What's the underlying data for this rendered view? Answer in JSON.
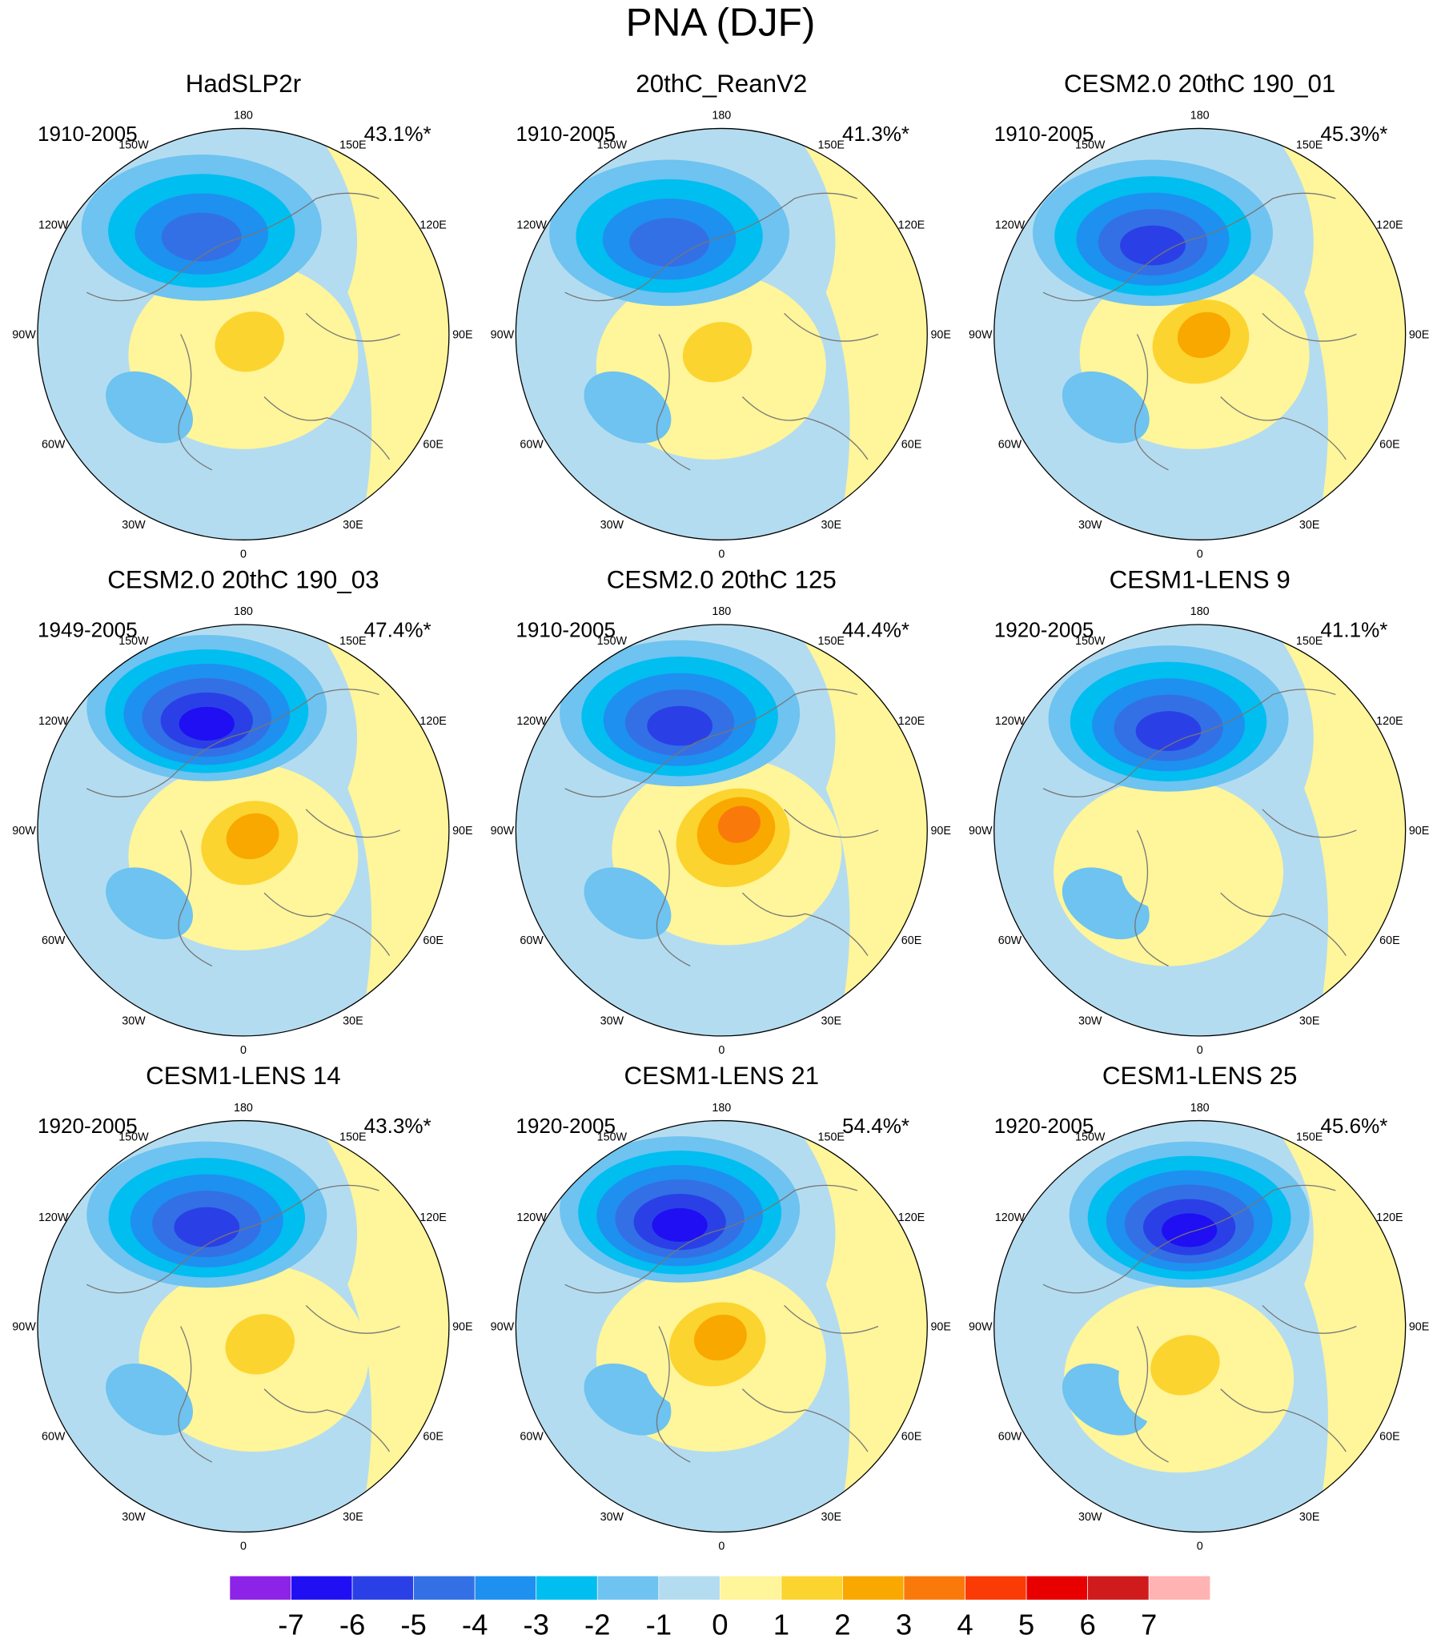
{
  "title": "PNA (DJF)",
  "panels": [
    {
      "title": "HadSLP2r",
      "period": "1910-2005",
      "variance": "43.1%*"
    },
    {
      "title": "20thC_ReanV2",
      "period": "1910-2005",
      "variance": "41.3%*"
    },
    {
      "title": "CESM2.0 20thC 190_01",
      "period": "1910-2005",
      "variance": "45.3%*"
    },
    {
      "title": "CESM2.0 20thC 190_03",
      "period": "1949-2005",
      "variance": "47.4%*"
    },
    {
      "title": "CESM2.0 20thC 125",
      "period": "1910-2005",
      "variance": "44.4%*"
    },
    {
      "title": "CESM1-LENS 9",
      "period": "1920-2005",
      "variance": "41.1%*"
    },
    {
      "title": "CESM1-LENS 14",
      "period": "1920-2005",
      "variance": "43.3%*"
    },
    {
      "title": "CESM1-LENS 21",
      "period": "1920-2005",
      "variance": "54.4%*"
    },
    {
      "title": "CESM1-LENS 25",
      "period": "1920-2005",
      "variance": "45.6%*"
    }
  ],
  "longitude_labels": [
    "0",
    "30E",
    "60E",
    "90E",
    "120E",
    "150E",
    "180",
    "150W",
    "120W",
    "90W",
    "60W",
    "30W"
  ],
  "colorbar": {
    "levels": [
      -7,
      -6,
      -5,
      -4,
      -3,
      -2,
      -1,
      0,
      1,
      2,
      3,
      4,
      5,
      6,
      7
    ],
    "colors": [
      "#8d23e6",
      "#1f0ff2",
      "#2a40e6",
      "#3370e6",
      "#1e90f0",
      "#00bef0",
      "#6ec3f0",
      "#b4dcf0",
      "#fff59a",
      "#fcd42f",
      "#f9a800",
      "#f97a0b",
      "#fb3b05",
      "#e80000",
      "#cf1b1b",
      "#ffb3b3"
    ]
  }
}
